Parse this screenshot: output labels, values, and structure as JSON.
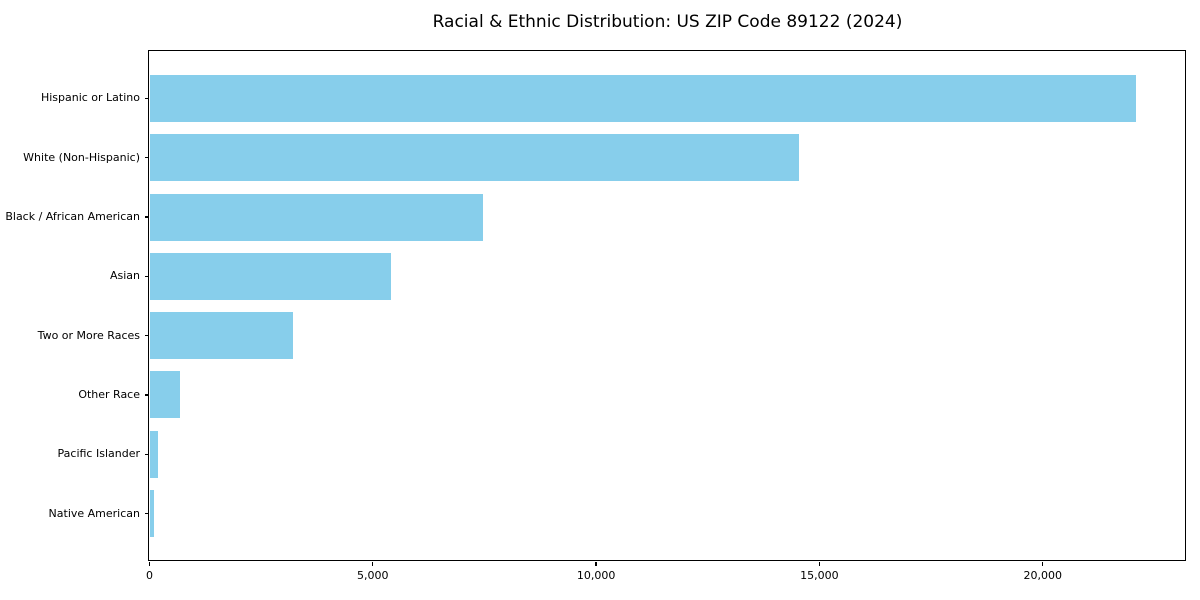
{
  "chart_data": {
    "type": "bar",
    "orientation": "horizontal",
    "title": "Racial & Ethnic Distribution: US ZIP Code 89122 (2024)",
    "categories": [
      "Hispanic or Latino",
      "White (Non-Hispanic)",
      "Black / African American",
      "Asian",
      "Two or More Races",
      "Other Race",
      "Pacific Islander",
      "Native American"
    ],
    "values": [
      22100,
      14550,
      7470,
      5410,
      3220,
      690,
      200,
      110
    ],
    "xlabel": "",
    "ylabel": "",
    "xlim": [
      0,
      23175
    ],
    "xticks": [
      0,
      5000,
      10000,
      15000,
      20000
    ],
    "xtick_labels": [
      "0",
      "5,000",
      "10,000",
      "15,000",
      "20,000"
    ],
    "bar_color": "#87CEEB",
    "spine_color": "#000000",
    "background_color": "#ffffff",
    "grid": false,
    "legend": false
  }
}
